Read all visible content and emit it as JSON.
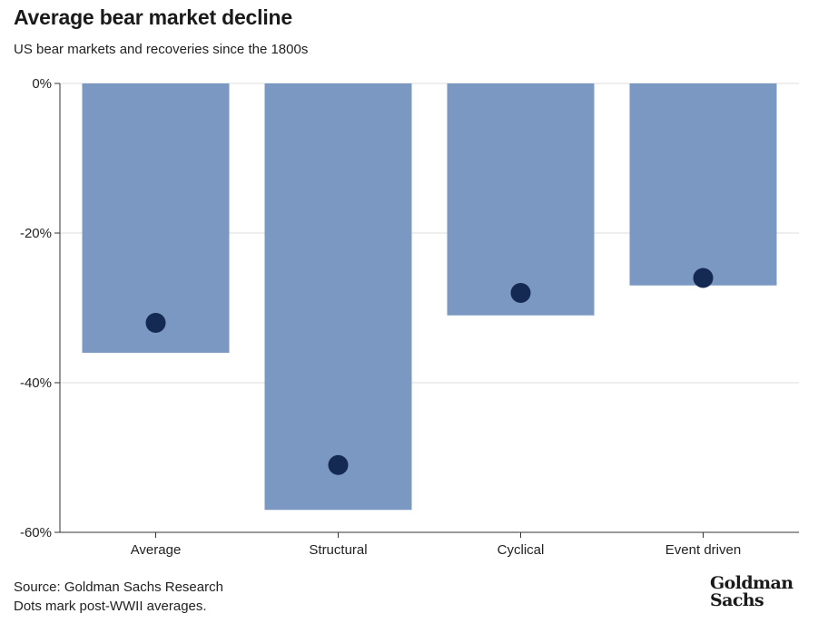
{
  "header": {
    "title": "Average bear market decline",
    "subtitle": "US bear markets and recoveries since the 1800s"
  },
  "footer": {
    "source": "Source: Goldman Sachs Research",
    "note": "Dots mark post-WWII averages.",
    "logo_line1": "Goldman",
    "logo_line2": "Sachs"
  },
  "colors": {
    "bar": "#7b98c3",
    "dot": "#152a52",
    "grid": "#dddddd",
    "axis": "#333333"
  },
  "chart_data": {
    "type": "bar",
    "title": "Average bear market decline",
    "subtitle": "US bear markets and recoveries since the 1800s",
    "categories": [
      "Average",
      "Structural",
      "Cyclical",
      "Event driven"
    ],
    "series": [
      {
        "values": [
          -36,
          -57,
          -31,
          -27
        ]
      },
      {
        "name": "Dots mark post-WWII averages.",
        "values": [
          -32,
          -51,
          -28,
          -26
        ]
      }
    ],
    "y_ticks": [
      0,
      -20,
      -40,
      -60
    ],
    "y_tick_labels": [
      "0%",
      "-20%",
      "-40%",
      "-60%"
    ],
    "ylim": [
      -60,
      0
    ],
    "grid": true,
    "legend": "none"
  }
}
